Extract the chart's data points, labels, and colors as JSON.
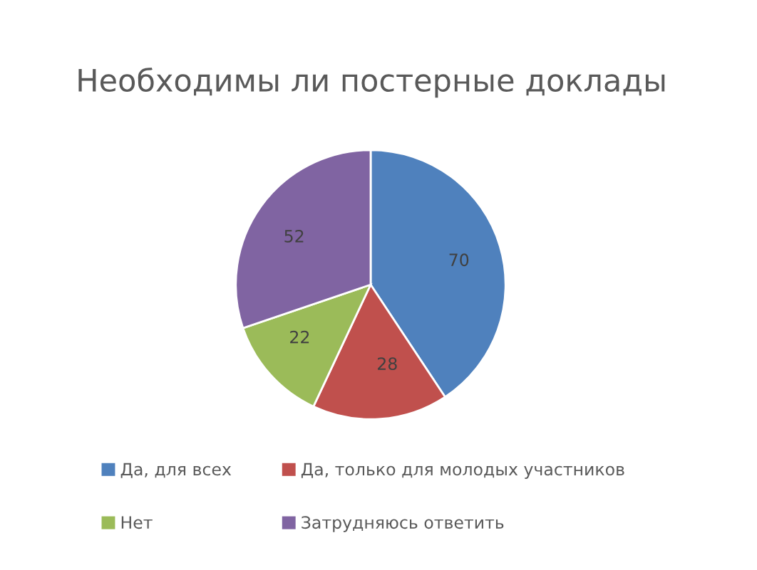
{
  "chart_data": {
    "type": "pie",
    "title": "Необходимы ли постерные доклады",
    "categories": [
      "Да, для всех",
      "Да, только для молодых участников",
      "Нет",
      "Затрудняюсь ответить"
    ],
    "values": [
      70,
      28,
      22,
      52
    ],
    "colors": [
      "#4f81bd",
      "#c0504d",
      "#9bbb59",
      "#8064a2"
    ],
    "data_labels": true,
    "legend": "bottom"
  }
}
